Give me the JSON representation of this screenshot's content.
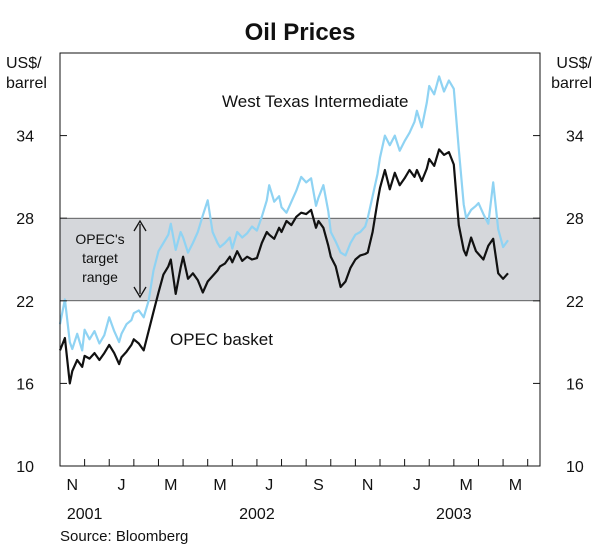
{
  "chart_data": {
    "type": "line",
    "title": "Oil Prices",
    "ylabel_left": [
      "US$/",
      "barrel"
    ],
    "ylabel_right": [
      "US$/",
      "barrel"
    ],
    "ylim": [
      10,
      40
    ],
    "yticks": [
      10,
      16,
      22,
      28,
      34
    ],
    "ytick_labels": [
      "10",
      "16",
      "22",
      "28",
      "34"
    ],
    "xlim_months": [
      0,
      19.5
    ],
    "month_ticks": [
      {
        "label": "N",
        "m": 0.5
      },
      {
        "label": "J",
        "m": 2.5
      },
      {
        "label": "M",
        "m": 4.5
      },
      {
        "label": "M",
        "m": 6.5
      },
      {
        "label": "J",
        "m": 8.5
      },
      {
        "label": "S",
        "m": 10.5
      },
      {
        "label": "N",
        "m": 12.5
      },
      {
        "label": "J",
        "m": 14.5
      },
      {
        "label": "M",
        "m": 16.5
      },
      {
        "label": "M",
        "m": 18.5
      }
    ],
    "year_labels": [
      {
        "label": "2001",
        "m": 1.0
      },
      {
        "label": "2002",
        "m": 8.0
      },
      {
        "label": "2003",
        "m": 16.0
      }
    ],
    "band": {
      "label": [
        "OPEC's",
        "target",
        "range"
      ],
      "from": 22,
      "to": 28
    },
    "series": [
      {
        "name": "West Texas Intermediate",
        "color": "#8fd3f3",
        "x": [
          0,
          0.2,
          0.4,
          0.5,
          0.7,
          0.9,
          1.0,
          1.2,
          1.4,
          1.6,
          1.8,
          2.0,
          2.2,
          2.4,
          2.5,
          2.7,
          2.9,
          3.0,
          3.2,
          3.4,
          3.6,
          3.8,
          4.0,
          4.2,
          4.4,
          4.5,
          4.7,
          4.9,
          5.0,
          5.2,
          5.4,
          5.6,
          5.8,
          6.0,
          6.2,
          6.4,
          6.5,
          6.7,
          6.9,
          7.0,
          7.2,
          7.4,
          7.6,
          7.8,
          8.0,
          8.2,
          8.4,
          8.5,
          8.7,
          8.9,
          9.0,
          9.2,
          9.4,
          9.6,
          9.8,
          10.0,
          10.2,
          10.4,
          10.5,
          10.7,
          10.9,
          11.0,
          11.2,
          11.4,
          11.6,
          11.8,
          12.0,
          12.2,
          12.4,
          12.5,
          12.7,
          12.9,
          13.0,
          13.2,
          13.4,
          13.6,
          13.8,
          14.0,
          14.2,
          14.4,
          14.5,
          14.7,
          14.9,
          15.0,
          15.2,
          15.4,
          15.6,
          15.8,
          16.0,
          16.2,
          16.4,
          16.5,
          16.7,
          16.9,
          17.0,
          17.2,
          17.4,
          17.6,
          17.8,
          18.0,
          18.2
        ],
        "values": [
          20.3,
          22.1,
          19.0,
          18.5,
          19.6,
          18.4,
          19.9,
          19.2,
          19.8,
          18.9,
          19.5,
          20.8,
          19.8,
          19.0,
          19.6,
          20.3,
          20.6,
          21.1,
          21.3,
          20.8,
          22.0,
          24.2,
          25.6,
          26.2,
          26.8,
          27.6,
          25.7,
          27.0,
          26.6,
          25.5,
          26.2,
          27.0,
          28.2,
          29.3,
          27.0,
          26.2,
          25.9,
          26.2,
          26.6,
          25.8,
          27.0,
          26.6,
          26.9,
          27.4,
          27.1,
          28.1,
          29.3,
          30.4,
          29.2,
          29.6,
          28.8,
          28.4,
          29.2,
          30.0,
          31.0,
          30.6,
          30.9,
          28.9,
          29.5,
          30.4,
          28.5,
          27.0,
          26.3,
          25.5,
          25.3,
          26.2,
          26.8,
          27.0,
          27.4,
          28.0,
          29.6,
          31.2,
          32.4,
          34.0,
          33.3,
          34.0,
          32.9,
          33.6,
          34.2,
          35.0,
          35.8,
          34.6,
          36.4,
          37.6,
          37.0,
          38.3,
          37.2,
          38.0,
          37.4,
          33.0,
          29.0,
          28.0,
          28.6,
          28.9,
          29.1,
          28.3,
          27.6,
          30.6,
          27.2,
          25.9,
          26.4
        ]
      },
      {
        "name": "OPEC basket",
        "color": "#111111",
        "x": [
          0,
          0.2,
          0.4,
          0.5,
          0.7,
          0.9,
          1.0,
          1.2,
          1.4,
          1.6,
          1.8,
          2.0,
          2.2,
          2.4,
          2.5,
          2.7,
          2.9,
          3.0,
          3.2,
          3.4,
          3.6,
          3.8,
          4.0,
          4.2,
          4.4,
          4.5,
          4.7,
          4.9,
          5.0,
          5.2,
          5.4,
          5.6,
          5.8,
          6.0,
          6.2,
          6.4,
          6.5,
          6.7,
          6.9,
          7.0,
          7.2,
          7.4,
          7.6,
          7.8,
          8.0,
          8.2,
          8.4,
          8.5,
          8.7,
          8.9,
          9.0,
          9.2,
          9.4,
          9.6,
          9.8,
          10.0,
          10.2,
          10.4,
          10.5,
          10.7,
          10.9,
          11.0,
          11.2,
          11.4,
          11.6,
          11.8,
          12.0,
          12.2,
          12.4,
          12.5,
          12.7,
          12.9,
          13.0,
          13.2,
          13.4,
          13.6,
          13.8,
          14.0,
          14.2,
          14.4,
          14.5,
          14.7,
          14.9,
          15.0,
          15.2,
          15.4,
          15.6,
          15.8,
          16.0,
          16.2,
          16.4,
          16.5,
          16.7,
          16.9,
          17.0,
          17.2,
          17.4,
          17.6,
          17.8,
          18.0,
          18.2
        ],
        "values": [
          18.4,
          19.3,
          16.0,
          16.9,
          17.7,
          17.2,
          18.0,
          17.8,
          18.2,
          17.7,
          18.2,
          18.8,
          18.2,
          17.4,
          17.9,
          18.3,
          18.8,
          19.2,
          18.9,
          18.4,
          19.8,
          21.2,
          22.6,
          23.9,
          24.5,
          25.0,
          22.5,
          24.4,
          25.2,
          23.6,
          24.0,
          23.5,
          22.6,
          23.4,
          23.8,
          24.2,
          24.5,
          24.7,
          25.2,
          24.8,
          25.6,
          24.9,
          25.2,
          25.0,
          25.1,
          26.2,
          27.0,
          26.8,
          26.5,
          27.3,
          27.0,
          27.8,
          27.5,
          28.1,
          28.4,
          28.3,
          28.6,
          27.3,
          27.8,
          27.3,
          26.0,
          25.2,
          24.5,
          23.0,
          23.4,
          24.4,
          25.0,
          25.3,
          25.4,
          25.5,
          27.0,
          29.2,
          30.2,
          31.5,
          30.1,
          31.3,
          30.4,
          30.9,
          31.5,
          31.0,
          31.5,
          30.7,
          31.6,
          32.3,
          31.8,
          33.0,
          32.6,
          32.8,
          31.9,
          27.5,
          25.7,
          25.3,
          26.6,
          25.6,
          25.4,
          25.0,
          26.0,
          26.5,
          24.0,
          23.6,
          24.0
        ]
      }
    ],
    "annotations": {
      "wti_label": "West Texas Intermediate",
      "opec_label": "OPEC basket"
    },
    "source": "Source: Bloomberg"
  }
}
